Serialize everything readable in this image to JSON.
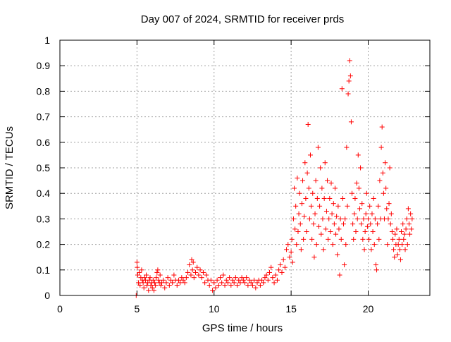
{
  "chart_data": {
    "type": "scatter",
    "title": "Day 007 of 2024, SRMTID for receiver prds",
    "xlabel": "GPS time / hours",
    "ylabel": "SRMTID / TECUs",
    "xlim": [
      0,
      24
    ],
    "ylim": [
      0,
      1
    ],
    "xticks": [
      0,
      5,
      10,
      15,
      20
    ],
    "yticks": [
      0,
      0.1,
      0.2,
      0.3,
      0.4,
      0.5,
      0.6,
      0.7,
      0.8,
      0.9,
      1
    ],
    "grid": true,
    "marker": "+",
    "series_color": "#ff0000",
    "series": [
      {
        "name": "SRMTID",
        "points": [
          [
            4.95,
            0.0
          ],
          [
            5.0,
            0.13
          ],
          [
            5.02,
            0.11
          ],
          [
            5.05,
            0.08
          ],
          [
            5.1,
            0.05
          ],
          [
            5.15,
            0.09
          ],
          [
            5.2,
            0.04
          ],
          [
            5.25,
            0.07
          ],
          [
            5.3,
            0.1
          ],
          [
            5.35,
            0.06
          ],
          [
            5.4,
            0.05
          ],
          [
            5.45,
            0.03
          ],
          [
            5.5,
            0.07
          ],
          [
            5.55,
            0.06
          ],
          [
            5.6,
            0.08
          ],
          [
            5.65,
            0.04
          ],
          [
            5.7,
            0.05
          ],
          [
            5.75,
            0.02
          ],
          [
            5.8,
            0.06
          ],
          [
            5.85,
            0.07
          ],
          [
            5.9,
            0.04
          ],
          [
            5.95,
            0.05
          ],
          [
            6.0,
            0.03
          ],
          [
            6.05,
            0.06
          ],
          [
            6.1,
            0.02
          ],
          [
            6.15,
            0.05
          ],
          [
            6.2,
            0.04
          ],
          [
            6.25,
            0.07
          ],
          [
            6.3,
            0.09
          ],
          [
            6.35,
            0.1
          ],
          [
            6.4,
            0.06
          ],
          [
            6.45,
            0.05
          ],
          [
            6.5,
            0.08
          ],
          [
            6.55,
            0.04
          ],
          [
            6.6,
            0.05
          ],
          [
            6.7,
            0.06
          ],
          [
            6.8,
            0.03
          ],
          [
            6.9,
            0.05
          ],
          [
            7.0,
            0.07
          ],
          [
            7.1,
            0.04
          ],
          [
            7.2,
            0.06
          ],
          [
            7.3,
            0.05
          ],
          [
            7.4,
            0.08
          ],
          [
            7.5,
            0.06
          ],
          [
            7.6,
            0.04
          ],
          [
            7.7,
            0.06
          ],
          [
            7.8,
            0.05
          ],
          [
            7.9,
            0.07
          ],
          [
            8.0,
            0.06
          ],
          [
            8.1,
            0.05
          ],
          [
            8.2,
            0.07
          ],
          [
            8.3,
            0.09
          ],
          [
            8.4,
            0.12
          ],
          [
            8.5,
            0.08
          ],
          [
            8.55,
            0.14
          ],
          [
            8.6,
            0.1
          ],
          [
            8.65,
            0.13
          ],
          [
            8.7,
            0.07
          ],
          [
            8.8,
            0.09
          ],
          [
            8.9,
            0.11
          ],
          [
            9.0,
            0.08
          ],
          [
            9.1,
            0.1
          ],
          [
            9.2,
            0.07
          ],
          [
            9.3,
            0.09
          ],
          [
            9.4,
            0.05
          ],
          [
            9.5,
            0.08
          ],
          [
            9.6,
            0.06
          ],
          [
            9.7,
            0.04
          ],
          [
            9.8,
            0.06
          ],
          [
            9.9,
            0.02
          ],
          [
            10.0,
            0.05
          ],
          [
            10.1,
            0.03
          ],
          [
            10.2,
            0.06
          ],
          [
            10.3,
            0.04
          ],
          [
            10.4,
            0.07
          ],
          [
            10.5,
            0.05
          ],
          [
            10.6,
            0.08
          ],
          [
            10.7,
            0.04
          ],
          [
            10.8,
            0.06
          ],
          [
            10.9,
            0.05
          ],
          [
            11.0,
            0.07
          ],
          [
            11.1,
            0.04
          ],
          [
            11.2,
            0.06
          ],
          [
            11.3,
            0.05
          ],
          [
            11.4,
            0.07
          ],
          [
            11.5,
            0.04
          ],
          [
            11.6,
            0.06
          ],
          [
            11.7,
            0.05
          ],
          [
            11.8,
            0.07
          ],
          [
            11.9,
            0.06
          ],
          [
            12.0,
            0.05
          ],
          [
            12.1,
            0.07
          ],
          [
            12.2,
            0.04
          ],
          [
            12.3,
            0.06
          ],
          [
            12.4,
            0.05
          ],
          [
            12.5,
            0.04
          ],
          [
            12.6,
            0.06
          ],
          [
            12.7,
            0.03
          ],
          [
            12.8,
            0.05
          ],
          [
            12.9,
            0.06
          ],
          [
            13.0,
            0.04
          ],
          [
            13.1,
            0.06
          ],
          [
            13.2,
            0.05
          ],
          [
            13.3,
            0.07
          ],
          [
            13.4,
            0.08
          ],
          [
            13.5,
            0.06
          ],
          [
            13.6,
            0.09
          ],
          [
            13.7,
            0.11
          ],
          [
            13.8,
            0.07
          ],
          [
            13.9,
            0.05
          ],
          [
            14.0,
            0.08
          ],
          [
            14.1,
            0.06
          ],
          [
            14.2,
            0.1
          ],
          [
            14.3,
            0.12
          ],
          [
            14.4,
            0.09
          ],
          [
            14.5,
            0.14
          ],
          [
            14.6,
            0.11
          ],
          [
            14.7,
            0.18
          ],
          [
            14.8,
            0.2
          ],
          [
            14.9,
            0.15
          ],
          [
            15.0,
            0.17
          ],
          [
            15.05,
            0.22
          ],
          [
            15.1,
            0.13
          ],
          [
            15.15,
            0.3
          ],
          [
            15.2,
            0.42
          ],
          [
            15.25,
            0.26
          ],
          [
            15.3,
            0.35
          ],
          [
            15.35,
            0.2
          ],
          [
            15.4,
            0.46
          ],
          [
            15.45,
            0.25
          ],
          [
            15.5,
            0.32
          ],
          [
            15.55,
            0.4
          ],
          [
            15.6,
            0.28
          ],
          [
            15.65,
            0.18
          ],
          [
            15.7,
            0.36
          ],
          [
            15.75,
            0.45
          ],
          [
            15.8,
            0.22
          ],
          [
            15.85,
            0.31
          ],
          [
            15.9,
            0.52
          ],
          [
            15.95,
            0.38
          ],
          [
            16.0,
            0.25
          ],
          [
            16.05,
            0.48
          ],
          [
            16.1,
            0.67
          ],
          [
            16.15,
            0.42
          ],
          [
            16.2,
            0.3
          ],
          [
            16.25,
            0.55
          ],
          [
            16.3,
            0.35
          ],
          [
            16.35,
            0.22
          ],
          [
            16.4,
            0.4
          ],
          [
            16.45,
            0.28
          ],
          [
            16.5,
            0.15
          ],
          [
            16.55,
            0.32
          ],
          [
            16.6,
            0.45
          ],
          [
            16.65,
            0.2
          ],
          [
            16.7,
            0.38
          ],
          [
            16.75,
            0.58
          ],
          [
            16.8,
            0.27
          ],
          [
            16.85,
            0.35
          ],
          [
            16.9,
            0.5
          ],
          [
            16.95,
            0.24
          ],
          [
            17.0,
            0.42
          ],
          [
            17.05,
            0.3
          ],
          [
            17.1,
            0.18
          ],
          [
            17.15,
            0.38
          ],
          [
            17.2,
            0.52
          ],
          [
            17.25,
            0.26
          ],
          [
            17.3,
            0.33
          ],
          [
            17.35,
            0.45
          ],
          [
            17.4,
            0.22
          ],
          [
            17.45,
            0.3
          ],
          [
            17.5,
            0.38
          ],
          [
            17.55,
            0.25
          ],
          [
            17.6,
            0.44
          ],
          [
            17.65,
            0.32
          ],
          [
            17.7,
            0.2
          ],
          [
            17.75,
            0.36
          ],
          [
            17.8,
            0.28
          ],
          [
            17.85,
            0.42
          ],
          [
            17.9,
            0.24
          ],
          [
            17.95,
            0.31
          ],
          [
            18.0,
            0.16
          ],
          [
            18.05,
            0.35
          ],
          [
            18.1,
            0.26
          ],
          [
            18.15,
            0.08
          ],
          [
            18.2,
            0.3
          ],
          [
            18.25,
            0.22
          ],
          [
            18.3,
            0.81
          ],
          [
            18.35,
            0.38
          ],
          [
            18.4,
            0.28
          ],
          [
            18.45,
            0.12
          ],
          [
            18.5,
            0.3
          ],
          [
            18.55,
            0.2
          ],
          [
            18.6,
            0.58
          ],
          [
            18.65,
            0.35
          ],
          [
            18.7,
            0.79
          ],
          [
            18.75,
            0.84
          ],
          [
            18.8,
            0.92
          ],
          [
            18.85,
            0.86
          ],
          [
            18.9,
            0.68
          ],
          [
            18.95,
            0.4
          ],
          [
            19.0,
            0.28
          ],
          [
            19.05,
            0.22
          ],
          [
            19.1,
            0.32
          ],
          [
            19.15,
            0.38
          ],
          [
            19.2,
            0.25
          ],
          [
            19.25,
            0.44
          ],
          [
            19.3,
            0.3
          ],
          [
            19.35,
            0.55
          ],
          [
            19.4,
            0.42
          ],
          [
            19.45,
            0.34
          ],
          [
            19.5,
            0.5
          ],
          [
            19.55,
            0.28
          ],
          [
            19.6,
            0.36
          ],
          [
            19.65,
            0.22
          ],
          [
            19.7,
            0.3
          ],
          [
            19.75,
            0.18
          ],
          [
            19.8,
            0.25
          ],
          [
            19.85,
            0.32
          ],
          [
            19.9,
            0.4
          ],
          [
            19.95,
            0.27
          ],
          [
            20.0,
            0.3
          ],
          [
            20.05,
            0.22
          ],
          [
            20.1,
            0.35
          ],
          [
            20.15,
            0.28
          ],
          [
            20.2,
            0.18
          ],
          [
            20.25,
            0.32
          ],
          [
            20.3,
            0.25
          ],
          [
            20.35,
            0.38
          ],
          [
            20.4,
            0.2
          ],
          [
            20.45,
            0.3
          ],
          [
            20.5,
            0.12
          ],
          [
            20.55,
            0.1
          ],
          [
            20.6,
            0.28
          ],
          [
            20.65,
            0.35
          ],
          [
            20.7,
            0.22
          ],
          [
            20.75,
            0.45
          ],
          [
            20.8,
            0.3
          ],
          [
            20.85,
            0.58
          ],
          [
            20.9,
            0.66
          ],
          [
            20.95,
            0.48
          ],
          [
            21.0,
            0.4
          ],
          [
            21.05,
            0.3
          ],
          [
            21.1,
            0.52
          ],
          [
            21.15,
            0.42
          ],
          [
            21.2,
            0.34
          ],
          [
            21.25,
            0.2
          ],
          [
            21.3,
            0.3
          ],
          [
            21.35,
            0.36
          ],
          [
            21.4,
            0.5
          ],
          [
            21.45,
            0.28
          ],
          [
            21.5,
            0.32
          ],
          [
            21.55,
            0.25
          ],
          [
            21.6,
            0.22
          ],
          [
            21.65,
            0.18
          ],
          [
            21.7,
            0.15
          ],
          [
            21.75,
            0.24
          ],
          [
            21.8,
            0.2
          ],
          [
            21.85,
            0.26
          ],
          [
            21.9,
            0.16
          ],
          [
            21.95,
            0.2
          ],
          [
            22.0,
            0.22
          ],
          [
            22.05,
            0.18
          ],
          [
            22.1,
            0.14
          ],
          [
            22.15,
            0.25
          ],
          [
            22.2,
            0.2
          ],
          [
            22.25,
            0.28
          ],
          [
            22.3,
            0.22
          ],
          [
            22.35,
            0.24
          ],
          [
            22.4,
            0.18
          ],
          [
            22.45,
            0.26
          ],
          [
            22.5,
            0.3
          ],
          [
            22.55,
            0.2
          ],
          [
            22.6,
            0.34
          ],
          [
            22.65,
            0.28
          ],
          [
            22.7,
            0.24
          ],
          [
            22.75,
            0.32
          ],
          [
            22.8,
            0.26
          ],
          [
            22.85,
            0.3
          ]
        ]
      }
    ]
  }
}
